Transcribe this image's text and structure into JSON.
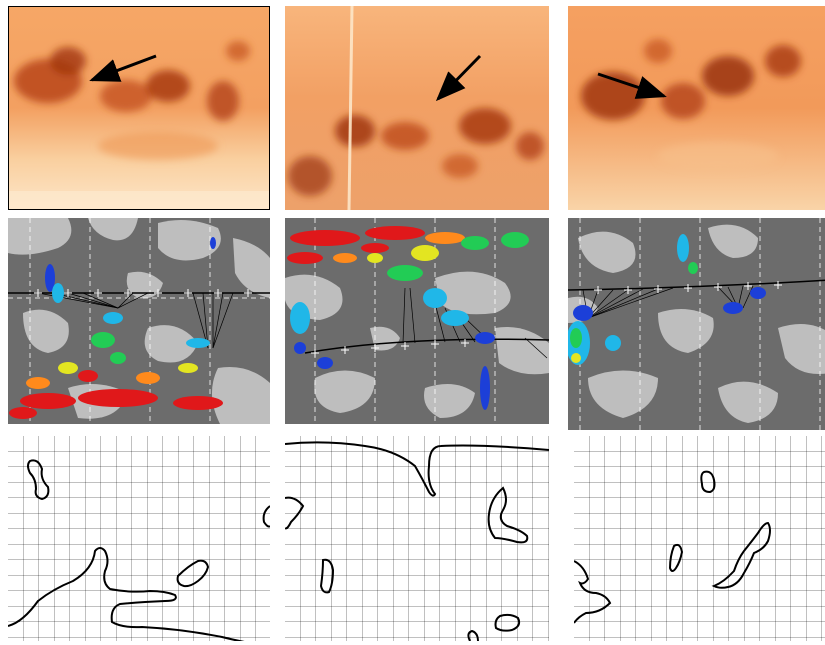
{
  "figure": {
    "rows": 3,
    "columns": 3,
    "row_descriptions": [
      "solar-image",
      "magnetic-map",
      "contour-grid"
    ],
    "colors": {
      "solar_bright": "#fbd7a7",
      "solar_mid": "#f2924a",
      "solar_dark": "#a1360d",
      "map_dark": "#6c6c6c",
      "map_light": "#bebebe",
      "contour_line": "#000000",
      "arrow": "#000000"
    }
  }
}
